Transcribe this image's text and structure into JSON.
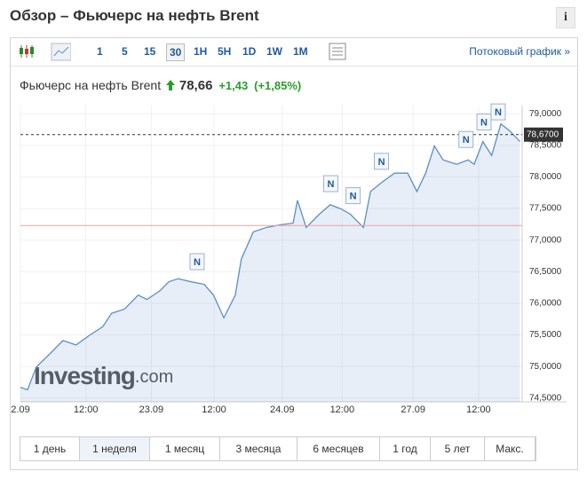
{
  "header": {
    "title": "Обзор – Фьючерс на нефть Brent",
    "info": "i"
  },
  "toolbar": {
    "intervals": [
      "1",
      "5",
      "15",
      "30",
      "1H",
      "5H",
      "1D",
      "1W",
      "1M"
    ],
    "selected": "30",
    "streaming": "Потоковый график »"
  },
  "quote": {
    "name": "Фьючерс на нефть Brent",
    "price": "78,66",
    "change": "+1,43",
    "change_pct": "(+1,85%)"
  },
  "chart_data": {
    "type": "area",
    "color": "#5b8fc7",
    "x": [
      0,
      1.3,
      2.9,
      5.4,
      7.8,
      10.2,
      12.6,
      15.1,
      16.7,
      19.1,
      21.6,
      23.2,
      25.6,
      27.2,
      28.9,
      31.3,
      33.7,
      35.4,
      37.3,
      39.4,
      40.5,
      42.7,
      45.1,
      47.5,
      50.0,
      50.8,
      52.4,
      54.8,
      56.8,
      58.9,
      60.5,
      62.9,
      64.2,
      66.2,
      68.6,
      71.0,
      72.7,
      74.3,
      75.9,
      77.5,
      80.0,
      82.1,
      83.2,
      84.8,
      86.4,
      88.1,
      89.7,
      91.6
    ],
    "values": [
      74.67,
      74.63,
      74.99,
      75.2,
      75.41,
      75.34,
      75.49,
      75.63,
      75.84,
      75.91,
      76.13,
      76.06,
      76.2,
      76.34,
      76.39,
      76.34,
      76.3,
      76.13,
      75.77,
      76.13,
      76.7,
      77.13,
      77.2,
      77.24,
      77.27,
      77.63,
      77.2,
      77.41,
      77.56,
      77.49,
      77.41,
      77.2,
      77.77,
      77.91,
      78.06,
      78.06,
      77.77,
      78.06,
      78.49,
      78.27,
      78.2,
      78.27,
      78.2,
      78.56,
      78.34,
      78.84,
      78.73,
      78.56
    ],
    "xlim": [
      0,
      92
    ],
    "xticks": [
      {
        "value": 0,
        "label": "2.09"
      },
      {
        "value": 12,
        "label": "12:00"
      },
      {
        "value": 24,
        "label": "23.09"
      },
      {
        "value": 35.5,
        "label": "12:00"
      },
      {
        "value": 48,
        "label": "24.09"
      },
      {
        "value": 59,
        "label": "12:00"
      },
      {
        "value": 72,
        "label": "27.09"
      },
      {
        "value": 84,
        "label": "12:00"
      }
    ],
    "ylim": [
      74.44,
      79.13
    ],
    "yticks": [
      {
        "value": 74.5,
        "label": "74,5000"
      },
      {
        "value": 75,
        "label": "75,0000"
      },
      {
        "value": 75.5,
        "label": "75,5000"
      },
      {
        "value": 76,
        "label": "76,0000"
      },
      {
        "value": 76.5,
        "label": "76,5000"
      },
      {
        "value": 77,
        "label": "77,0000"
      },
      {
        "value": 77.5,
        "label": "77,5000"
      },
      {
        "value": 78,
        "label": "78,0000"
      },
      {
        "value": 78.5,
        "label": "78,5000"
      },
      {
        "value": 79,
        "label": "79,0000"
      }
    ],
    "grid": true,
    "reference": 77.23,
    "last": {
      "value": 78.67,
      "label": "78,6700"
    },
    "news": [
      {
        "x": 32.4,
        "label": "N"
      },
      {
        "x": 56.9,
        "label": "N"
      },
      {
        "x": 61.0,
        "label": "N"
      },
      {
        "x": 66.2,
        "label": "N"
      },
      {
        "x": 81.7,
        "label": "N"
      },
      {
        "x": 85.0,
        "label": "N"
      },
      {
        "x": 87.6,
        "label": "N"
      }
    ],
    "watermark": {
      "brand": "Investing",
      "suffix": ".com"
    }
  },
  "periods": {
    "items": [
      "1 день",
      "1 неделя",
      "1 месяц",
      "3 месяца",
      "6 месяцев",
      "1 год",
      "5 лет",
      "Макс."
    ],
    "selected": "1 неделя"
  }
}
